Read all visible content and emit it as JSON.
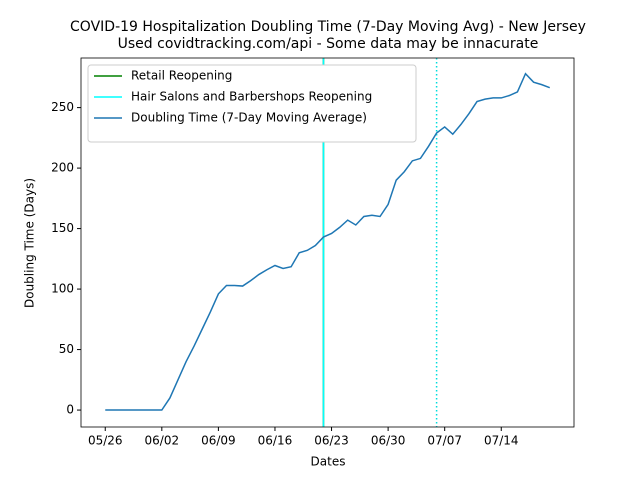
{
  "chart_data": {
    "type": "line",
    "title": "COVID-19 Hospitalization Doubling Time (7-Day Moving Avg) - New Jersey",
    "subtitle": "Used covidtracking.com/api - Some data may be innacurate",
    "x_label": "Dates",
    "y_label": "Doubling Time (Days)",
    "x": [
      "05/26",
      "05/27",
      "05/28",
      "05/29",
      "05/30",
      "05/31",
      "06/01",
      "06/02",
      "06/03",
      "06/04",
      "06/05",
      "06/06",
      "06/07",
      "06/08",
      "06/09",
      "06/10",
      "06/11",
      "06/12",
      "06/13",
      "06/14",
      "06/15",
      "06/16",
      "06/17",
      "06/18",
      "06/19",
      "06/20",
      "06/21",
      "06/22",
      "06/23",
      "06/24",
      "06/25",
      "06/26",
      "06/27",
      "06/28",
      "06/29",
      "06/30",
      "07/01",
      "07/02",
      "07/03",
      "07/04",
      "07/05",
      "07/06",
      "07/07",
      "07/08",
      "07/09",
      "07/10",
      "07/11",
      "07/12",
      "07/13",
      "07/14",
      "07/15",
      "07/16",
      "07/17",
      "07/18",
      "07/19",
      "07/20"
    ],
    "series": [
      {
        "name": "Doubling Time (7-Day Moving Average)",
        "color": "#1f77b4",
        "values": [
          0,
          0,
          0,
          0,
          0,
          0,
          0,
          0,
          10,
          25,
          40,
          53,
          67,
          81,
          96,
          103,
          103,
          102.5,
          107,
          112,
          116,
          119.5,
          117,
          118.5,
          130,
          132,
          136,
          143,
          146,
          151,
          157,
          153,
          160,
          161,
          160,
          170,
          190,
          197,
          206,
          208,
          218,
          229,
          234,
          228,
          236,
          245,
          255,
          257,
          258,
          258,
          260,
          263,
          278,
          271,
          269,
          266.5
        ]
      }
    ],
    "events": [
      {
        "name": "Retail Reopening",
        "x": "06/22",
        "color": "green"
      },
      {
        "name": "Hair Salons and Barbershops Reopening",
        "x": "06/22",
        "color": "cyan"
      }
    ],
    "markers": [
      {
        "x": "07/06",
        "color": "#00dddd",
        "style": "dotted"
      }
    ],
    "xlim": [
      "05/23",
      "07/23"
    ],
    "xticks": [
      "05/26",
      "06/02",
      "06/09",
      "06/16",
      "06/23",
      "06/30",
      "07/07",
      "07/14"
    ],
    "ylim": [
      -14,
      291
    ],
    "yticks": [
      0,
      50,
      100,
      150,
      200,
      250
    ],
    "legend": "upper left"
  }
}
